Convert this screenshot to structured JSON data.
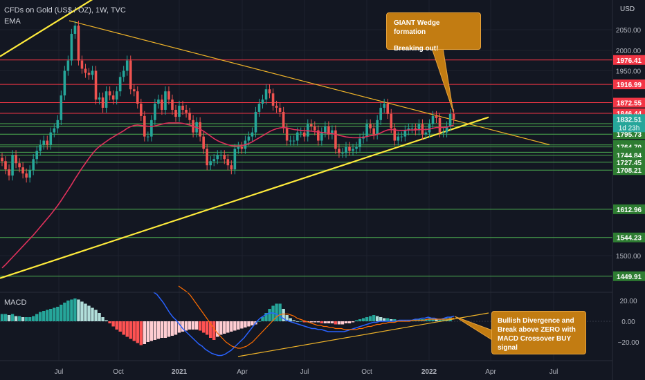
{
  "header": {
    "title": "CFDs on Gold (US$ / OZ), 1W, TVC",
    "indicator": "EMA",
    "currency": "USD"
  },
  "colors": {
    "up": "#26a69a",
    "down": "#ef5350",
    "ema": "#e0315b",
    "wedge": "#ffeb3b",
    "trend": "#f0b429",
    "resistance": "#f23645",
    "support": "#4caf50",
    "macd_line": "#2962ff",
    "signal_line": "#ff6d00",
    "note": "#c27c12"
  },
  "notes": {
    "wedge_title": "GIANT Wedge formation",
    "wedge_sub": "Breaking out!",
    "macd_note": "Bullish Divergence and Break above ZERO with MACD Crossover BUY signal"
  },
  "macd": {
    "label": "MACD"
  },
  "chart_data": [
    {
      "type": "candlestick",
      "title": "CFDs on Gold (US$ / OZ), 1W, TVC",
      "x_ticks": [
        "Jul",
        "Oct",
        "2021",
        "Apr",
        "Jul",
        "Oct",
        "2022",
        "Apr",
        "Jul"
      ],
      "y_ticks": [
        2050,
        2000,
        1950,
        1500
      ],
      "ylim": [
        1420,
        2130
      ],
      "current_price": {
        "value": 1832.51,
        "countdown": "1d 23h"
      },
      "resistance_levels": [
        1976.41,
        1916.99,
        1872.55,
        1846.44
      ],
      "support_levels": [
        1821.25,
        1814.49,
        1795.73,
        1769.64,
        1764.7,
        1751.61,
        1744.84,
        1727.45,
        1708.21,
        1612.96,
        1544.23,
        1449.91
      ],
      "closes": [
        1730,
        1710,
        1695,
        1745,
        1725,
        1715,
        1700,
        1690,
        1708,
        1735,
        1755,
        1770,
        1780,
        1770,
        1800,
        1810,
        1830,
        1890,
        1950,
        1975,
        2040,
        2060,
        1975,
        1955,
        1945,
        1940,
        1950,
        1880,
        1885,
        1860,
        1900,
        1890,
        1880,
        1900,
        1935,
        1950,
        1975,
        1905,
        1900,
        1870,
        1840,
        1790,
        1790,
        1830,
        1870,
        1880,
        1855,
        1900,
        1880,
        1855,
        1838,
        1865,
        1855,
        1848,
        1830,
        1800,
        1825,
        1790,
        1760,
        1720,
        1730,
        1735,
        1745,
        1745,
        1735,
        1720,
        1710,
        1760,
        1765,
        1760,
        1780,
        1790,
        1800,
        1850,
        1870,
        1880,
        1905,
        1895,
        1865,
        1860,
        1850,
        1810,
        1780,
        1780,
        1780,
        1800,
        1800,
        1790,
        1820,
        1815,
        1805,
        1780,
        1800,
        1815,
        1795,
        1805,
        1760,
        1750,
        1750,
        1765,
        1755,
        1760,
        1765,
        1785,
        1790,
        1820,
        1810,
        1795,
        1830,
        1860,
        1870,
        1845,
        1810,
        1780,
        1790,
        1790,
        1805,
        1810,
        1810,
        1805,
        1820,
        1795,
        1800,
        1820,
        1840,
        1835,
        1800,
        1800,
        1815,
        1845,
        1832.51
      ],
      "ema": [
        1470,
        1478,
        1487,
        1496,
        1505,
        1514,
        1523,
        1532,
        1541,
        1550,
        1560,
        1570,
        1580,
        1590,
        1600,
        1611,
        1622,
        1634,
        1647,
        1660,
        1673,
        1687,
        1700,
        1713,
        1725,
        1737,
        1748,
        1758,
        1766,
        1772,
        1778,
        1784,
        1789,
        1794,
        1799,
        1804,
        1810,
        1814,
        1817,
        1818,
        1817,
        1816,
        1815,
        1814,
        1816,
        1818,
        1820,
        1822,
        1823,
        1823,
        1823,
        1823,
        1822,
        1820,
        1818,
        1815,
        1812,
        1808,
        1803,
        1797,
        1791,
        1785,
        1780,
        1776,
        1773,
        1770,
        1768,
        1767,
        1767,
        1768,
        1770,
        1773,
        1777,
        1782,
        1787,
        1792,
        1797,
        1802,
        1806,
        1809,
        1811,
        1812,
        1811,
        1809,
        1807,
        1806,
        1805,
        1804,
        1804,
        1803,
        1802,
        1801,
        1800,
        1799,
        1798,
        1797,
        1795,
        1793,
        1791,
        1789,
        1788,
        1787,
        1787,
        1787,
        1788,
        1790,
        1792,
        1793,
        1795,
        1799,
        1803,
        1806,
        1807,
        1806,
        1805,
        1805,
        1805,
        1806,
        1806,
        1806,
        1807,
        1807,
        1807,
        1808,
        1810,
        1812,
        1812,
        1812,
        1813,
        1815,
        1818
      ]
    },
    {
      "type": "macd",
      "title": "MACD",
      "y_ticks": [
        20,
        0,
        -20
      ],
      "ylim": [
        -35,
        28
      ],
      "histogram": [
        7,
        7,
        6,
        7,
        5,
        5,
        4,
        4,
        4,
        5,
        7,
        9,
        10,
        11,
        12,
        13,
        14,
        16,
        18,
        20,
        21,
        22,
        21,
        19,
        17,
        15,
        13,
        11,
        8,
        4,
        1,
        -2,
        -5,
        -8,
        -10,
        -13,
        -15,
        -17,
        -19,
        -21,
        -23,
        -22,
        -20,
        -19,
        -18,
        -17,
        -16,
        -16,
        -15,
        -14,
        -13,
        -11,
        -10,
        -9,
        -8,
        -8,
        -8,
        -9,
        -11,
        -13,
        -16,
        -18,
        -15,
        -13,
        -12,
        -11,
        -10,
        -9,
        -8,
        -7,
        -6,
        -5,
        -4,
        -3,
        0,
        4,
        8,
        12,
        15,
        17,
        17,
        12,
        6,
        3,
        1,
        0,
        0,
        -1,
        -1,
        -1,
        -1,
        -1,
        -2,
        -2,
        -2,
        -2,
        -3,
        -3,
        -3,
        -2,
        -2,
        -1,
        1,
        2,
        3,
        4,
        5,
        6,
        5,
        4,
        3,
        3,
        2,
        2,
        1,
        1,
        1,
        1,
        1,
        2,
        2,
        2,
        2,
        3,
        3,
        2,
        2,
        3,
        3,
        4
      ],
      "macd_line": [
        28,
        26,
        22,
        18,
        13,
        8,
        4,
        1,
        -3,
        -7,
        -10,
        -13,
        -16,
        -19,
        -22,
        -24,
        -27,
        -29,
        -31,
        -32,
        -33,
        -33,
        -32,
        -30,
        -28,
        -25,
        -22,
        -19,
        -16,
        -12,
        -8,
        -4,
        0,
        3,
        5,
        7,
        8,
        8,
        7,
        5,
        3,
        1,
        0,
        -1,
        -2,
        -3,
        -4,
        -5,
        -6,
        -7,
        -7,
        -8,
        -8,
        -9,
        -10,
        -10,
        -10,
        -10,
        -10,
        -10,
        -9,
        -8,
        -7,
        -6,
        -5,
        -4,
        -3,
        -2,
        -1,
        -1,
        0,
        0,
        0,
        0,
        0,
        0,
        1,
        1,
        1,
        1,
        1,
        2,
        2,
        3,
        3,
        4,
        3,
        3,
        2,
        2,
        3,
        4,
        4,
        5
      ],
      "signal_line": [
        34,
        32,
        30,
        28,
        25,
        21,
        17,
        13,
        9,
        5,
        1,
        -3,
        -7,
        -11,
        -14,
        -17,
        -20,
        -22,
        -24,
        -25,
        -26,
        -26,
        -25,
        -24,
        -22,
        -20,
        -17,
        -14,
        -11,
        -8,
        -5,
        -2,
        1,
        4,
        6,
        7,
        7,
        7,
        6,
        5,
        3,
        2,
        1,
        0,
        -1,
        -2,
        -3,
        -4,
        -4,
        -5,
        -5,
        -6,
        -6,
        -7,
        -7,
        -7,
        -8,
        -8,
        -8,
        -8,
        -8,
        -7,
        -7,
        -6,
        -5,
        -5,
        -4,
        -3,
        -3,
        -2,
        -2,
        -1,
        -1,
        -1,
        0,
        0,
        0,
        0,
        0,
        1,
        1,
        1,
        1,
        1,
        2,
        2,
        2,
        2,
        2,
        2,
        2,
        2,
        3,
        3
      ],
      "zero_line": true
    }
  ]
}
